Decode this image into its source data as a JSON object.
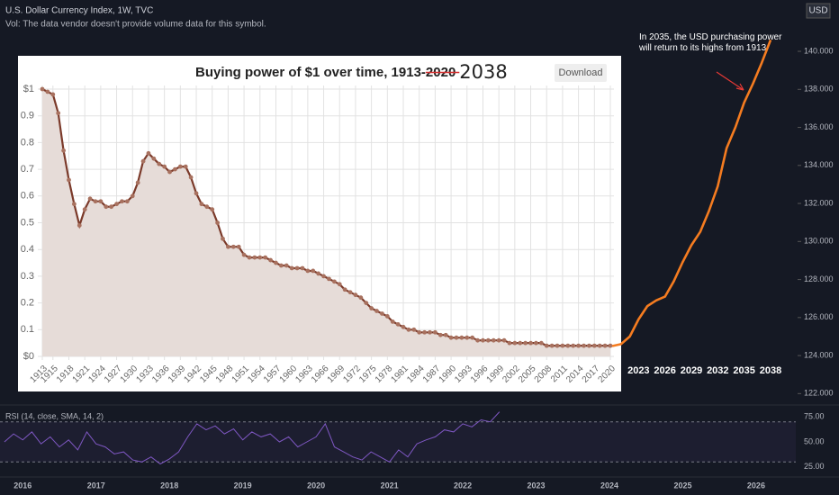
{
  "header": {
    "symbol": "U.S. Dollar Currency Index, 1W, TVC",
    "volume_note": "Vol: The data vendor doesn't provide volume data for this symbol.",
    "currency": "USD"
  },
  "annotation": "In 2035, the USD purchasing power will return to its highs from 1913.",
  "chart_data": [
    {
      "type": "line",
      "title": "Buying power of $1 over time, 1913-",
      "title_struck": "2020",
      "title_correction": "2038",
      "button": "Download",
      "color": "#7b3a2a",
      "fill": "#e6dcd8",
      "grid": true,
      "x": [
        1913,
        1914,
        1915,
        1916,
        1917,
        1918,
        1919,
        1920,
        1921,
        1922,
        1923,
        1924,
        1925,
        1926,
        1927,
        1928,
        1929,
        1930,
        1931,
        1932,
        1933,
        1934,
        1935,
        1936,
        1937,
        1938,
        1939,
        1940,
        1941,
        1942,
        1943,
        1944,
        1945,
        1946,
        1947,
        1948,
        1949,
        1950,
        1951,
        1952,
        1953,
        1954,
        1955,
        1956,
        1957,
        1958,
        1959,
        1960,
        1961,
        1962,
        1963,
        1964,
        1965,
        1966,
        1967,
        1968,
        1969,
        1970,
        1971,
        1972,
        1973,
        1974,
        1975,
        1976,
        1977,
        1978,
        1979,
        1980,
        1981,
        1982,
        1983,
        1984,
        1985,
        1986,
        1987,
        1988,
        1989,
        1990,
        1991,
        1992,
        1993,
        1994,
        1995,
        1996,
        1997,
        1998,
        1999,
        2000,
        2001,
        2002,
        2003,
        2004,
        2005,
        2006,
        2007,
        2008,
        2009,
        2010,
        2011,
        2012,
        2013,
        2014,
        2015,
        2016,
        2017,
        2018,
        2019,
        2020
      ],
      "values": [
        1.0,
        0.99,
        0.98,
        0.91,
        0.77,
        0.66,
        0.57,
        0.49,
        0.55,
        0.59,
        0.58,
        0.58,
        0.56,
        0.56,
        0.57,
        0.58,
        0.58,
        0.6,
        0.65,
        0.73,
        0.76,
        0.74,
        0.72,
        0.71,
        0.69,
        0.7,
        0.71,
        0.71,
        0.67,
        0.61,
        0.57,
        0.56,
        0.55,
        0.5,
        0.44,
        0.41,
        0.41,
        0.41,
        0.38,
        0.37,
        0.37,
        0.37,
        0.37,
        0.36,
        0.35,
        0.34,
        0.34,
        0.33,
        0.33,
        0.33,
        0.32,
        0.32,
        0.31,
        0.3,
        0.29,
        0.28,
        0.27,
        0.25,
        0.24,
        0.23,
        0.22,
        0.2,
        0.18,
        0.17,
        0.16,
        0.15,
        0.13,
        0.12,
        0.11,
        0.1,
        0.1,
        0.09,
        0.09,
        0.09,
        0.09,
        0.08,
        0.08,
        0.07,
        0.07,
        0.07,
        0.07,
        0.07,
        0.06,
        0.06,
        0.06,
        0.06,
        0.06,
        0.06,
        0.05,
        0.05,
        0.05,
        0.05,
        0.05,
        0.05,
        0.05,
        0.04,
        0.04,
        0.04,
        0.04,
        0.04,
        0.04,
        0.04,
        0.04,
        0.04,
        0.04,
        0.04,
        0.04,
        0.04
      ],
      "xlim": [
        1913,
        2020
      ],
      "xticks": [
        1913,
        1915,
        1918,
        1921,
        1924,
        1927,
        1930,
        1933,
        1936,
        1939,
        1942,
        1945,
        1948,
        1951,
        1954,
        1957,
        1960,
        1963,
        1966,
        1969,
        1972,
        1975,
        1978,
        1981,
        1984,
        1987,
        1990,
        1993,
        1996,
        1999,
        2002,
        2005,
        2008,
        2011,
        2014,
        2017,
        2020
      ],
      "ylim": [
        0,
        1
      ],
      "yticks": [
        {
          "value": 0,
          "label": "$0"
        },
        0.1,
        0.2,
        0.3,
        0.4,
        0.5,
        0.6,
        0.7,
        0.8,
        0.9,
        {
          "value": 1,
          "label": "$1"
        }
      ]
    },
    {
      "type": "line",
      "color": "#f57c20",
      "x": [
        2020,
        2021,
        2022,
        2023,
        2024,
        2025,
        2026,
        2027,
        2028,
        2029,
        2030,
        2031,
        2032,
        2033,
        2034,
        2035,
        2036,
        2037,
        2038
      ],
      "values": [
        124.5,
        124.6,
        125.0,
        125.9,
        126.6,
        126.9,
        127.1,
        127.9,
        128.9,
        129.8,
        130.5,
        131.6,
        132.9,
        134.9,
        136.0,
        137.3,
        138.3,
        139.4,
        140.6
      ],
      "xticks": [
        2023,
        2026,
        2029,
        2032,
        2035,
        2038
      ],
      "ylim": [
        121.4,
        142.7
      ],
      "yticks": [
        {
          "value": 122,
          "label": "122.000"
        },
        {
          "value": 124,
          "label": "124.000"
        },
        {
          "value": 126,
          "label": "126.000"
        },
        {
          "value": 128,
          "label": "128.000"
        },
        {
          "value": 130,
          "label": "130.000"
        },
        {
          "value": 132,
          "label": "132.000"
        },
        {
          "value": 134,
          "label": "134.000"
        },
        {
          "value": 136,
          "label": "136.000"
        },
        {
          "value": 138,
          "label": "138.000"
        },
        {
          "value": 140,
          "label": "140.000"
        }
      ]
    },
    {
      "type": "line",
      "title": "RSI (14, close, SMA, 14, 2)",
      "color": "#7e57c2",
      "band": [
        30,
        70
      ],
      "x": [
        2015.75,
        2015.875,
        2016,
        2016.125,
        2016.25,
        2016.375,
        2016.5,
        2016.625,
        2016.75,
        2016.875,
        2017,
        2017.125,
        2017.25,
        2017.375,
        2017.5,
        2017.625,
        2017.75,
        2017.875,
        2018,
        2018.125,
        2018.25,
        2018.375,
        2018.5,
        2018.625,
        2018.75,
        2018.875,
        2019,
        2019.125,
        2019.25,
        2019.375,
        2019.5,
        2019.625,
        2019.75,
        2019.875,
        2020,
        2020.125,
        2020.25,
        2020.375,
        2020.5,
        2020.625,
        2020.75,
        2020.875,
        2021,
        2021.125,
        2021.25,
        2021.375,
        2021.5,
        2021.625,
        2021.75,
        2021.875,
        2022,
        2022.125,
        2022.25,
        2022.375,
        2022.5
      ],
      "values": [
        50,
        58,
        52,
        60,
        48,
        55,
        45,
        52,
        42,
        60,
        48,
        45,
        38,
        40,
        32,
        30,
        35,
        28,
        33,
        40,
        55,
        68,
        62,
        66,
        58,
        63,
        52,
        60,
        55,
        58,
        50,
        55,
        45,
        50,
        55,
        68,
        45,
        40,
        35,
        32,
        40,
        35,
        30,
        42,
        35,
        48,
        52,
        55,
        62,
        60,
        68,
        65,
        72,
        70,
        80
      ],
      "ylim": [
        15,
        85
      ],
      "yticks": [
        {
          "value": 75,
          "label": "75.00"
        },
        {
          "value": 50,
          "label": "50.00"
        },
        {
          "value": 25,
          "label": "25.00"
        }
      ],
      "xlim": [
        2015.69,
        2027.13
      ],
      "xticks": [
        2016,
        2017,
        2018,
        2019,
        2020,
        2021,
        2022,
        2023,
        2024,
        2025,
        2026
      ]
    }
  ]
}
